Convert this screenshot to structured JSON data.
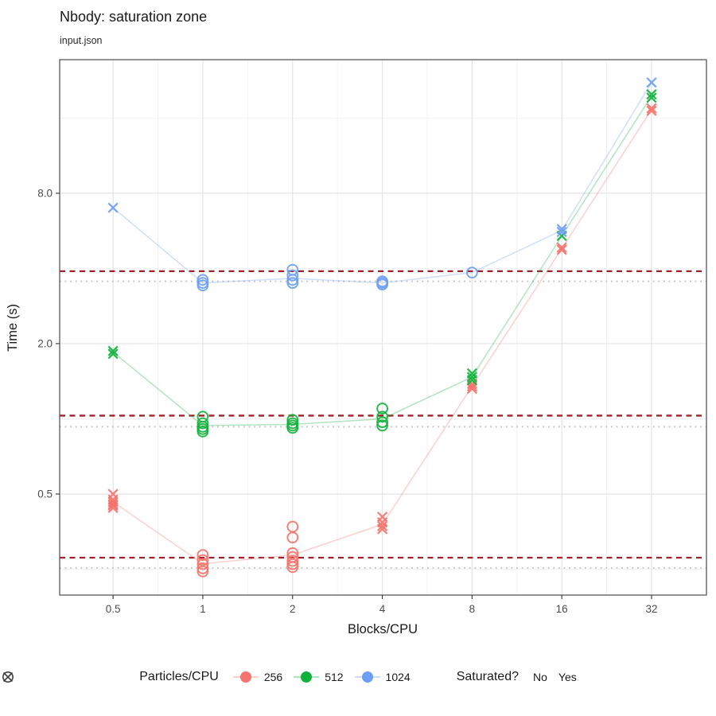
{
  "header": {
    "title": "Nbody: saturation zone",
    "subtitle": "input.json"
  },
  "chart_data": {
    "type": "scatter",
    "title": "Nbody: saturation zone",
    "subtitle": "input.json",
    "xlabel": "Blocks/CPU",
    "ylabel": "Time (s)",
    "x_scale": "log2",
    "y_scale": "log2",
    "xlim": [
      0.331,
      48.9
    ],
    "ylim": [
      0.197,
      27.4
    ],
    "x_ticks": [
      0.5,
      1,
      2,
      4,
      8,
      16,
      32
    ],
    "x_tick_labels": [
      "0.5",
      "1",
      "2",
      "4",
      "8",
      "16",
      "32"
    ],
    "y_ticks": [
      0.5,
      2.0,
      8.0
    ],
    "y_tick_labels": [
      "0.5",
      "2.0",
      "8.0"
    ],
    "x_minor": [
      0.707,
      1.414,
      2.828,
      5.657,
      11.314,
      22.627
    ],
    "y_minor": [
      0.25,
      1,
      4,
      16
    ],
    "grid": {
      "major_color": "#e4e4e4",
      "minor_color": "#f1f1f1"
    },
    "panel_border_color": "#595959",
    "hlines": {
      "dashed": {
        "color": "#a02128",
        "values": [
          3.9,
          1.03,
          0.278
        ]
      },
      "dotted": {
        "color": "#c4c4c4",
        "values": [
          3.55,
          0.93,
          0.253
        ]
      }
    },
    "series": [
      {
        "name": "256",
        "color": "#f4736c",
        "line": {
          "x": [
            0.5,
            1,
            2,
            4,
            8,
            16,
            32
          ],
          "y": [
            0.465,
            0.263,
            0.285,
            0.378,
            1.35,
            4.8,
            17.3
          ]
        },
        "points": [
          [
            0.5,
            0.5,
            "x"
          ],
          [
            0.5,
            0.475,
            "x"
          ],
          [
            0.5,
            0.465,
            "x"
          ],
          [
            0.5,
            0.455,
            "x"
          ],
          [
            0.5,
            0.45,
            "x"
          ],
          [
            0.5,
            0.44,
            "x"
          ],
          [
            1,
            0.285,
            "o"
          ],
          [
            1,
            0.272,
            "o"
          ],
          [
            1,
            0.262,
            "o"
          ],
          [
            1,
            0.252,
            "o"
          ],
          [
            1,
            0.245,
            "o"
          ],
          [
            2,
            0.37,
            "o"
          ],
          [
            2,
            0.335,
            "o"
          ],
          [
            2,
            0.29,
            "o"
          ],
          [
            2,
            0.28,
            "o"
          ],
          [
            2,
            0.27,
            "o"
          ],
          [
            2,
            0.262,
            "o"
          ],
          [
            2,
            0.255,
            "o"
          ],
          [
            4,
            0.405,
            "x"
          ],
          [
            4,
            0.385,
            "x"
          ],
          [
            4,
            0.372,
            "x"
          ],
          [
            4,
            0.362,
            "x"
          ],
          [
            8,
            1.38,
            "x"
          ],
          [
            8,
            1.35,
            "x"
          ],
          [
            8,
            1.32,
            "x"
          ],
          [
            16,
            4.85,
            "x"
          ],
          [
            16,
            4.75,
            "x"
          ],
          [
            32,
            17.5,
            "x"
          ],
          [
            32,
            17.1,
            "x"
          ]
        ]
      },
      {
        "name": "512",
        "color": "#12b13c",
        "line": {
          "x": [
            0.5,
            1,
            2,
            4,
            8,
            16,
            32
          ],
          "y": [
            1.85,
            0.94,
            0.95,
            1.0,
            1.47,
            5.4,
            19.6
          ]
        },
        "points": [
          [
            0.5,
            1.87,
            "x"
          ],
          [
            0.5,
            1.82,
            "x"
          ],
          [
            1,
            1.02,
            "o"
          ],
          [
            1,
            0.96,
            "o"
          ],
          [
            1,
            0.93,
            "o"
          ],
          [
            1,
            0.91,
            "o"
          ],
          [
            1,
            0.89,
            "o"
          ],
          [
            2,
            0.99,
            "o"
          ],
          [
            2,
            0.96,
            "o"
          ],
          [
            2,
            0.94,
            "o"
          ],
          [
            2,
            0.92,
            "o"
          ],
          [
            4,
            1.1,
            "o"
          ],
          [
            4,
            1.02,
            "o"
          ],
          [
            4,
            0.97,
            "o"
          ],
          [
            4,
            0.94,
            "o"
          ],
          [
            8,
            1.52,
            "x"
          ],
          [
            8,
            1.47,
            "x"
          ],
          [
            8,
            1.43,
            "x"
          ],
          [
            16,
            5.4,
            "x"
          ],
          [
            32,
            19.9,
            "x"
          ],
          [
            32,
            19.3,
            "x"
          ]
        ]
      },
      {
        "name": "1024",
        "color": "#6b9ef4",
        "line": {
          "x": [
            0.5,
            1,
            2,
            4,
            8,
            16,
            32
          ],
          "y": [
            7.0,
            3.5,
            3.65,
            3.5,
            3.85,
            5.68,
            22.2
          ]
        },
        "points": [
          [
            0.5,
            7.0,
            "x"
          ],
          [
            1,
            3.6,
            "o"
          ],
          [
            1,
            3.5,
            "o"
          ],
          [
            1,
            3.42,
            "o"
          ],
          [
            2,
            3.95,
            "o"
          ],
          [
            2,
            3.75,
            "o"
          ],
          [
            2,
            3.6,
            "o"
          ],
          [
            2,
            3.5,
            "o"
          ],
          [
            4,
            3.55,
            "o"
          ],
          [
            4,
            3.5,
            "o"
          ],
          [
            4,
            3.45,
            "o"
          ],
          [
            8,
            3.85,
            "o"
          ],
          [
            16,
            5.75,
            "x"
          ],
          [
            16,
            5.6,
            "x"
          ],
          [
            32,
            22.2,
            "x"
          ]
        ]
      }
    ],
    "legend": {
      "color_title": "Particles/CPU",
      "shape_title": "Saturated?",
      "shape_items": [
        {
          "label": "No",
          "shape": "x"
        },
        {
          "label": "Yes",
          "shape": "o"
        }
      ]
    }
  }
}
